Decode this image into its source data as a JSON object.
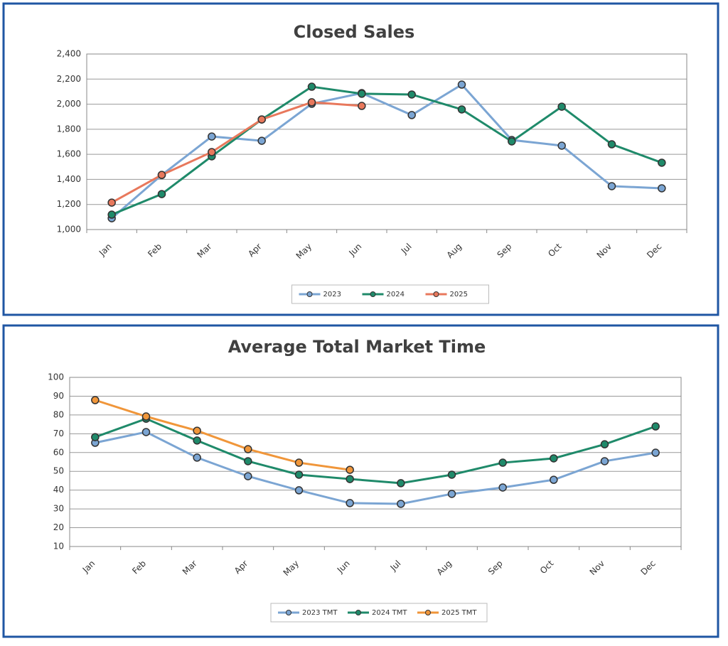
{
  "chart_data": [
    {
      "type": "line",
      "title": "Closed Sales",
      "categories": [
        "Jan",
        "Feb",
        "Mar",
        "Apr",
        "May",
        "Jun",
        "Jul",
        "Aug",
        "Sep",
        "Oct",
        "Nov",
        "Dec"
      ],
      "ylim": [
        1000,
        2400
      ],
      "yticks": [
        {
          "value": 1000,
          "label": "1,000"
        },
        {
          "value": 1200,
          "label": "1,200"
        },
        {
          "value": 1400,
          "label": "1,400"
        },
        {
          "value": 1600,
          "label": "1,600"
        },
        {
          "value": 1800,
          "label": "1,800"
        },
        {
          "value": 2000,
          "label": "2,000"
        },
        {
          "value": 2200,
          "label": "2,200"
        },
        {
          "value": 2400,
          "label": "2,400"
        }
      ],
      "grid": true,
      "legend": "bottom",
      "series": [
        {
          "name": "2023",
          "color": "#7ba5d3",
          "values": [
            1090,
            1435,
            1742,
            1708,
            2003,
            2088,
            1913,
            2156,
            1714,
            1669,
            1346,
            1329
          ]
        },
        {
          "name": "2024",
          "color": "#1f8a6a",
          "values": [
            1119,
            1283,
            1584,
            1878,
            2139,
            2083,
            2077,
            1958,
            1703,
            1980,
            1680,
            1533
          ]
        },
        {
          "name": "2025",
          "color": "#e8785c",
          "values": [
            1215,
            1436,
            1618,
            1878,
            2015,
            1986,
            null,
            null,
            null,
            null,
            null,
            null
          ]
        }
      ]
    },
    {
      "type": "line",
      "title": "Average Total Market Time",
      "categories": [
        "Jan",
        "Feb",
        "Mar",
        "Apr",
        "May",
        "Jun",
        "Jul",
        "Aug",
        "Sep",
        "Oct",
        "Nov",
        "Dec"
      ],
      "ylim": [
        10,
        100
      ],
      "yticks": [
        10,
        20,
        30,
        40,
        50,
        60,
        70,
        80,
        90,
        100
      ],
      "grid": true,
      "legend": "bottom",
      "series": [
        {
          "name": "2023 TMT",
          "color": "#7ba5d3",
          "values": [
            65.2,
            70.9,
            57.3,
            47.4,
            39.9,
            33.1,
            32.7,
            38,
            41.4,
            45.5,
            55.4,
            59.9
          ]
        },
        {
          "name": "2024 TMT",
          "color": "#1f8a6a",
          "values": [
            68.2,
            78,
            66.4,
            55.4,
            48.2,
            45.9,
            43.7,
            48.2,
            54.6,
            56.9,
            64.4,
            73.9
          ]
        },
        {
          "name": "2025 TMT",
          "color": "#f0963a",
          "values": [
            87.9,
            79.2,
            71.6,
            61.8,
            54.6,
            50.8,
            null,
            null,
            null,
            null,
            null,
            null
          ]
        }
      ]
    }
  ]
}
